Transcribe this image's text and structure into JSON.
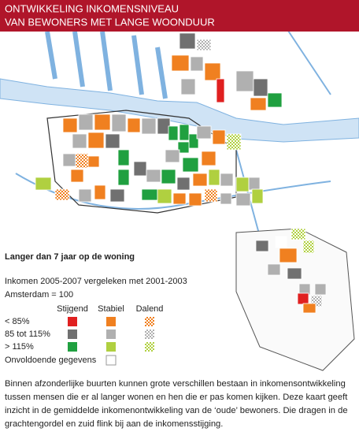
{
  "header": {
    "title_lines": [
      "ONTWIKKELING INKOMENSNIVEAU",
      "VAN BEWONERS MET LANGE WOONDUUR"
    ]
  },
  "legend": {
    "title": "Langer dan 7 jaar op de woning",
    "subtitle_lines": [
      "Inkomen 2005-2007 vergeleken met 2001-2003",
      "Amsterdam = 100"
    ],
    "columns": [
      "Stijgend",
      "Stabiel",
      "Dalend"
    ],
    "rows": [
      {
        "label": "< 85%"
      },
      {
        "label": "85 tot 115%"
      },
      {
        "label": "> 115%"
      }
    ],
    "no_data": "Onvoldoende gegevens"
  },
  "caption": {
    "lines": [
      "Binnen afzonderlijke buurten kunnen grote verschillen bestaan in inkomensontwikkeling",
      "tussen mensen die er al langer wonen en hen die er pas komen kijken. Deze kaart geeft",
      "inzicht in de gemiddelde inkomenontwikkeling van de ‘oude’ bewoners. Die dragen in de",
      "grachtengordel en zuid flink bij aan de inkomensstijging."
    ]
  }
}
